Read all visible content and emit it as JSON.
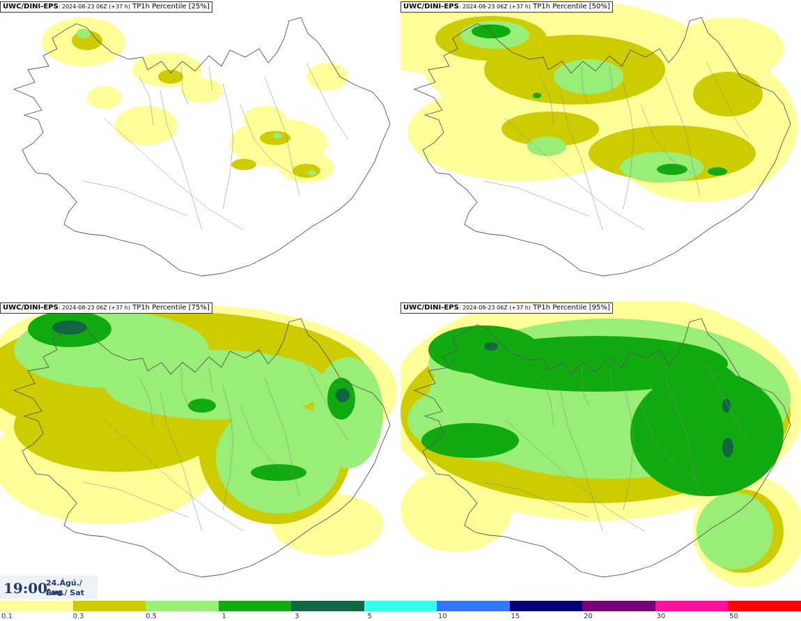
{
  "panels": [
    {
      "model": "UWC/DINI-EPS",
      "meta": ": 2024-08-23 06Z (+37 h)",
      "field": "TP1h Percentile [25%]"
    },
    {
      "model": "UWC/DINI-EPS",
      "meta": ": 2024-08-23 06Z (+37 h)",
      "field": "TP1h Percentile [50%]"
    },
    {
      "model": "UWC/DINI-EPS",
      "meta": ": 2024-08-23 06Z (+37 h)",
      "field": "TP1h Percentile [75%]"
    },
    {
      "model": "UWC/DINI-EPS",
      "meta": ": 2024-08-23 06Z (+37 h)",
      "field": "TP1h Percentile [95%]"
    }
  ],
  "valid_time": {
    "time": "19:00",
    "date": "24.Ágú./ Aug",
    "day": "Lau./ Sat"
  },
  "legend": {
    "ticks": [
      "0.1",
      "0.3",
      "0.5",
      "1",
      "3",
      "5",
      "10",
      "15",
      "20",
      "30",
      "50"
    ],
    "colors": [
      "#ffff99",
      "#cccc00",
      "#99ee77",
      "#11aa11",
      "#116644",
      "#33ffee",
      "#3377ff",
      "#000077",
      "#770077",
      "#ff1199",
      "#ff0000"
    ]
  },
  "colors": {
    "coastline": "#555555",
    "rivers": "#888888"
  }
}
